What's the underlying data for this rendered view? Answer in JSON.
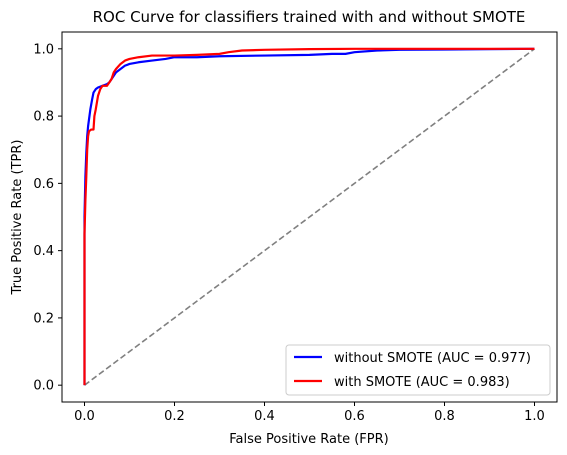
{
  "chart_data": {
    "type": "line",
    "title": "ROC Curve for classifiers trained with and without SMOTE",
    "xlabel": "False Positive Rate (FPR)",
    "ylabel": "True Positive Rate (TPR)",
    "xlim": [
      -0.05,
      1.05
    ],
    "ylim": [
      -0.05,
      1.05
    ],
    "xticks": [
      0.0,
      0.2,
      0.4,
      0.6,
      0.8,
      1.0
    ],
    "yticks": [
      0.0,
      0.2,
      0.4,
      0.6,
      0.8,
      1.0
    ],
    "xtick_labels": [
      "0.0",
      "0.2",
      "0.4",
      "0.6",
      "0.8",
      "1.0"
    ],
    "ytick_labels": [
      "0.0",
      "0.2",
      "0.4",
      "0.6",
      "0.8",
      "1.0"
    ],
    "grid": false,
    "legend_position": "lower-right",
    "series": [
      {
        "name": "without SMOTE (AUC = 0.977)",
        "color": "#0000ff",
        "style": "solid",
        "x": [
          0.0,
          0.0,
          0.002,
          0.004,
          0.006,
          0.008,
          0.01,
          0.013,
          0.017,
          0.02,
          0.025,
          0.03,
          0.04,
          0.05,
          0.055,
          0.06,
          0.065,
          0.07,
          0.08,
          0.09,
          0.1,
          0.12,
          0.15,
          0.18,
          0.2,
          0.25,
          0.3,
          0.4,
          0.5,
          0.55,
          0.58,
          0.6,
          0.65,
          0.7,
          0.8,
          0.9,
          1.0
        ],
        "y": [
          0.0,
          0.5,
          0.62,
          0.69,
          0.74,
          0.77,
          0.79,
          0.82,
          0.85,
          0.87,
          0.88,
          0.885,
          0.89,
          0.895,
          0.9,
          0.91,
          0.92,
          0.93,
          0.94,
          0.95,
          0.955,
          0.96,
          0.965,
          0.97,
          0.975,
          0.975,
          0.978,
          0.98,
          0.982,
          0.985,
          0.985,
          0.99,
          0.995,
          0.997,
          0.998,
          0.999,
          1.0
        ]
      },
      {
        "name": "with SMOTE (AUC = 0.983)",
        "color": "#ff0000",
        "style": "solid",
        "x": [
          0.0,
          0.0,
          0.002,
          0.004,
          0.006,
          0.008,
          0.01,
          0.015,
          0.02,
          0.022,
          0.025,
          0.03,
          0.035,
          0.04,
          0.05,
          0.06,
          0.065,
          0.07,
          0.08,
          0.09,
          0.1,
          0.12,
          0.15,
          0.2,
          0.25,
          0.3,
          0.32,
          0.35,
          0.4,
          0.5,
          0.6,
          0.7,
          0.8,
          0.9,
          1.0
        ],
        "y": [
          0.0,
          0.45,
          0.55,
          0.62,
          0.7,
          0.74,
          0.755,
          0.76,
          0.76,
          0.8,
          0.82,
          0.86,
          0.88,
          0.89,
          0.89,
          0.91,
          0.93,
          0.94,
          0.955,
          0.965,
          0.97,
          0.975,
          0.98,
          0.98,
          0.982,
          0.985,
          0.99,
          0.995,
          0.997,
          0.999,
          1.0,
          1.0,
          1.0,
          1.0,
          1.0
        ]
      },
      {
        "name": "",
        "color": "#808080",
        "style": "dashed",
        "x": [
          0.0,
          1.0
        ],
        "y": [
          0.0,
          1.0
        ]
      }
    ]
  }
}
